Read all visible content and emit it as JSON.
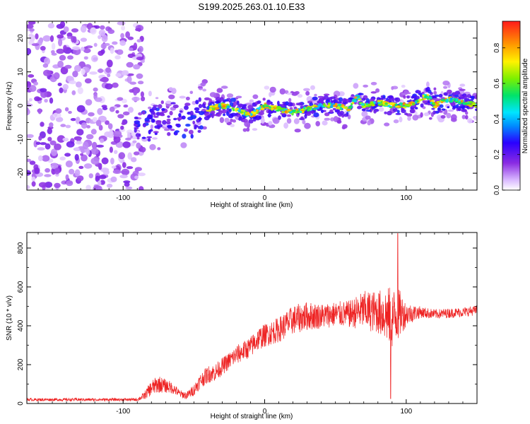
{
  "figure": {
    "title": "S199.2025.263.01.10.E33"
  },
  "colors": {
    "snr_line": "#ee2222",
    "axis": "#000000",
    "background": "#ffffff"
  },
  "chart_data": [
    {
      "type": "heatmap",
      "id": "spectrogram",
      "xlabel": "Height of straight line (km)",
      "ylabel": "Frequency (Hz)",
      "xlim": [
        -168,
        150
      ],
      "ylim": [
        -25,
        25
      ],
      "xticks": [
        -100,
        0,
        100
      ],
      "yticks": [
        -20,
        -10,
        0,
        10,
        20
      ],
      "colorbar": {
        "label": "Normalized spectral amplitude",
        "range": [
          0,
          0.95
        ],
        "ticks": [
          0.0,
          0.2,
          0.4,
          0.6,
          0.8
        ],
        "colormap": "rainbow"
      },
      "ridge_frequency_hz": {
        "x": [
          -90,
          -80,
          -70,
          -60,
          -50,
          -40,
          -30,
          -20,
          -10,
          0,
          10,
          20,
          30,
          40,
          50,
          60,
          65,
          70,
          80,
          90,
          100,
          110,
          115,
          120,
          130,
          140,
          150
        ],
        "y": [
          -7,
          -5,
          -3,
          -5,
          -4,
          -1,
          0,
          -1,
          -3,
          0,
          -1,
          -2,
          -1,
          0,
          0,
          -1,
          3,
          0,
          1,
          0,
          0,
          2,
          3,
          0,
          2,
          1,
          0
        ]
      },
      "noise_region_x": [
        -168,
        -90
      ]
    },
    {
      "type": "line",
      "id": "snr",
      "xlabel": "Height of straight line (km)",
      "ylabel": "SNR (10 * v/v)",
      "xlim": [
        -168,
        150
      ],
      "ylim": [
        0,
        880
      ],
      "xticks": [
        -100,
        0,
        100
      ],
      "yticks": [
        0,
        200,
        400,
        600,
        800
      ],
      "envelope": {
        "x": [
          -168,
          -90,
          -85,
          -80,
          -75,
          -70,
          -65,
          -60,
          -55,
          -50,
          -45,
          -40,
          -35,
          -30,
          -25,
          -20,
          -15,
          -10,
          -5,
          0,
          10,
          20,
          30,
          40,
          50,
          60,
          70,
          80,
          85,
          90,
          95,
          100,
          110,
          120,
          130,
          140,
          150
        ],
        "mean": [
          20,
          20,
          40,
          80,
          100,
          90,
          80,
          50,
          40,
          70,
          120,
          150,
          160,
          190,
          220,
          250,
          270,
          290,
          330,
          350,
          380,
          430,
          450,
          450,
          460,
          460,
          480,
          470,
          460,
          440,
          460,
          460,
          470,
          460,
          465,
          470,
          480
        ],
        "spread": [
          15,
          15,
          40,
          80,
          90,
          70,
          60,
          40,
          40,
          60,
          80,
          90,
          90,
          90,
          90,
          100,
          100,
          110,
          120,
          120,
          130,
          150,
          150,
          130,
          130,
          140,
          200,
          220,
          280,
          320,
          260,
          120,
          60,
          50,
          50,
          50,
          50
        ]
      },
      "peak": {
        "x": 94,
        "y": 875
      },
      "minimum_spike": {
        "x": 89,
        "y": 25
      }
    }
  ]
}
